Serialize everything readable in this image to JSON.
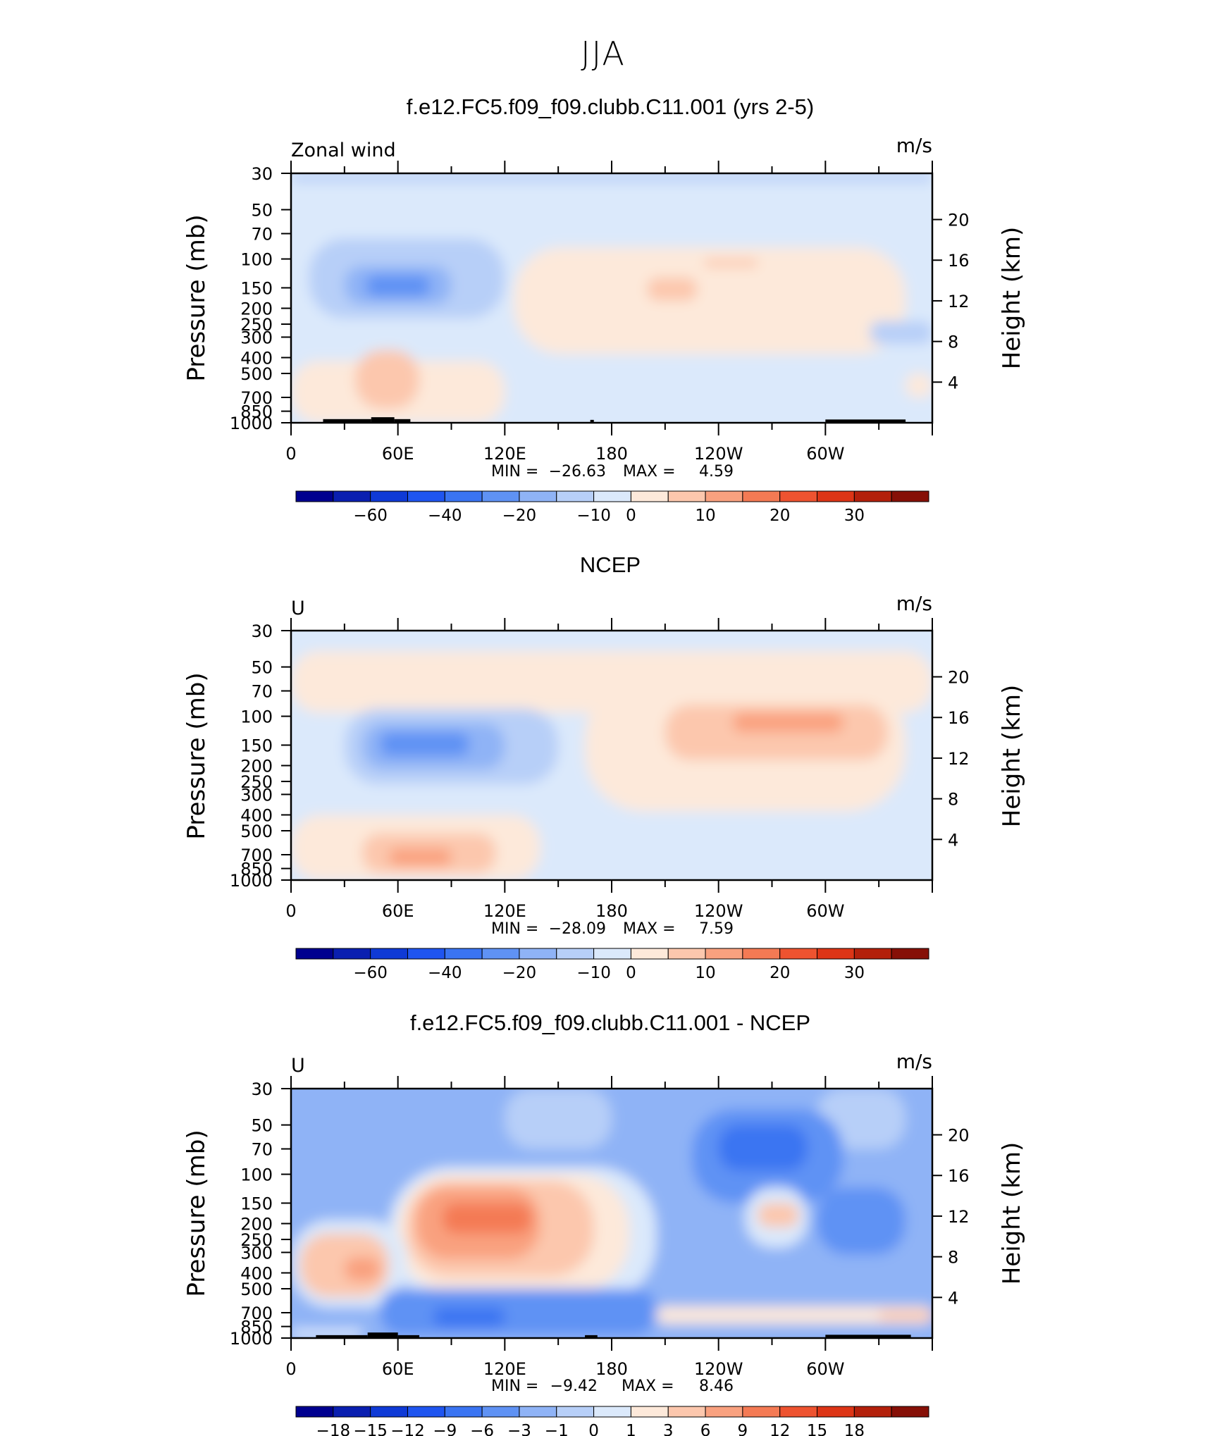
{
  "figure": {
    "title": "JJA"
  },
  "palettes": {
    "abs": [
      "#00008f",
      "#0a1fb0",
      "#0f3ad6",
      "#1f55f0",
      "#3a74f2",
      "#5f92f4",
      "#8fb3f6",
      "#b7cff8",
      "#dbe9fb",
      "#fde9da",
      "#fcc7ad",
      "#f9a17f",
      "#f47a54",
      "#ee5330",
      "#dd3516",
      "#b3200b",
      "#861007"
    ],
    "diff": [
      "#00008f",
      "#0a1fb0",
      "#0f3ad6",
      "#1f55f0",
      "#3a74f2",
      "#5f92f4",
      "#8fb3f6",
      "#b7cff8",
      "#dbe9fb",
      "#fde9da",
      "#fcc7ad",
      "#f9a17f",
      "#f47a54",
      "#ee5330",
      "#dd3516",
      "#b3200b",
      "#861007"
    ]
  },
  "chart_data": [
    {
      "type": "heatmap",
      "title": "f.e12.FC5.f09_f09.clubb.C11.001 (yrs 2-5)",
      "variable_label": "Zonal wind",
      "units": "m/s",
      "ylabel": "Pressure (mb)",
      "ylabel_right": "Height (km)",
      "x_ticks": [
        "0",
        "60E",
        "120E",
        "180",
        "120W",
        "60W"
      ],
      "x_range_deg": [
        0,
        360
      ],
      "y_ticks": [
        "30",
        "50",
        "70",
        "100",
        "150",
        "200",
        "250",
        "300",
        "400",
        "500",
        "700",
        "850",
        "1000"
      ],
      "y_range_mb": [
        30,
        1000
      ],
      "height_ticks": [
        "20",
        "16",
        "12",
        "8",
        "4"
      ],
      "min_label": "MIN =",
      "min": "−26.63",
      "max_label": "MAX =",
      "max": "4.59",
      "colorbar": {
        "palette": "abs",
        "ticks": [
          "−60",
          "−40",
          "−20",
          "−10",
          "0",
          "10",
          "20",
          "30"
        ]
      },
      "regions": [
        {
          "level": 8,
          "lon": [
            0,
            360
          ],
          "p": [
            30,
            1000
          ]
        },
        {
          "level": 7,
          "lon": [
            0,
            360
          ],
          "p": [
            30,
            34
          ]
        },
        {
          "level": 7,
          "lon": [
            10,
            120
          ],
          "p": [
            75,
            230
          ]
        },
        {
          "level": 6,
          "lon": [
            30,
            90
          ],
          "p": [
            110,
            190
          ]
        },
        {
          "level": 5,
          "lon": [
            42,
            78
          ],
          "p": [
            125,
            170
          ]
        },
        {
          "level": 9,
          "lon": [
            125,
            345
          ],
          "p": [
            85,
            380
          ]
        },
        {
          "level": 10,
          "lon": [
            200,
            228
          ],
          "p": [
            130,
            180
          ]
        },
        {
          "level": 10,
          "lon": [
            232,
            262
          ],
          "p": [
            100,
            112
          ]
        },
        {
          "level": 9,
          "lon": [
            0,
            120
          ],
          "p": [
            420,
            1000
          ]
        },
        {
          "level": 10,
          "lon": [
            36,
            72
          ],
          "p": [
            360,
            820
          ]
        },
        {
          "level": 9,
          "lon": [
            345,
            360
          ],
          "p": [
            500,
            700
          ]
        },
        {
          "level": 7,
          "lon": [
            325,
            360
          ],
          "p": [
            240,
            330
          ]
        }
      ]
    },
    {
      "type": "heatmap",
      "title": "NCEP",
      "variable_label": "U",
      "units": "m/s",
      "ylabel": "Pressure (mb)",
      "ylabel_right": "Height (km)",
      "x_ticks": [
        "0",
        "60E",
        "120E",
        "180",
        "120W",
        "60W"
      ],
      "x_range_deg": [
        0,
        360
      ],
      "y_ticks": [
        "30",
        "50",
        "70",
        "100",
        "150",
        "200",
        "250",
        "300",
        "400",
        "500",
        "700",
        "850",
        "1000"
      ],
      "y_range_mb": [
        30,
        1000
      ],
      "height_ticks": [
        "20",
        "16",
        "12",
        "8",
        "4"
      ],
      "min_label": "MIN =",
      "min": "−28.09",
      "max_label": "MAX =",
      "max": "7.59",
      "colorbar": {
        "palette": "abs",
        "ticks": [
          "−60",
          "−40",
          "−20",
          "−10",
          "0",
          "10",
          "20",
          "30"
        ]
      },
      "regions": [
        {
          "level": 8,
          "lon": [
            0,
            360
          ],
          "p": [
            30,
            1000
          ]
        },
        {
          "level": 9,
          "lon": [
            0,
            360
          ],
          "p": [
            40,
            95
          ]
        },
        {
          "level": 9,
          "lon": [
            165,
            345
          ],
          "p": [
            60,
            380
          ]
        },
        {
          "level": 10,
          "lon": [
            210,
            335
          ],
          "p": [
            85,
            185
          ]
        },
        {
          "level": 11,
          "lon": [
            248,
            310
          ],
          "p": [
            95,
            125
          ]
        },
        {
          "level": 7,
          "lon": [
            30,
            150
          ],
          "p": [
            90,
            260
          ]
        },
        {
          "level": 6,
          "lon": [
            40,
            120
          ],
          "p": [
            110,
            210
          ]
        },
        {
          "level": 5,
          "lon": [
            50,
            100
          ],
          "p": [
            125,
            175
          ]
        },
        {
          "level": 9,
          "lon": [
            0,
            140
          ],
          "p": [
            400,
            1000
          ]
        },
        {
          "level": 10,
          "lon": [
            40,
            115
          ],
          "p": [
            520,
            900
          ]
        },
        {
          "level": 11,
          "lon": [
            55,
            90
          ],
          "p": [
            640,
            820
          ]
        }
      ]
    },
    {
      "type": "heatmap",
      "title": "f.e12.FC5.f09_f09.clubb.C11.001 - NCEP",
      "variable_label": "U",
      "units": "m/s",
      "ylabel": "Pressure (mb)",
      "ylabel_right": "Height (km)",
      "x_ticks": [
        "0",
        "60E",
        "120E",
        "180",
        "120W",
        "60W"
      ],
      "x_range_deg": [
        0,
        360
      ],
      "y_ticks": [
        "30",
        "50",
        "70",
        "100",
        "150",
        "200",
        "250",
        "300",
        "400",
        "500",
        "700",
        "850",
        "1000"
      ],
      "y_range_mb": [
        30,
        1000
      ],
      "height_ticks": [
        "20",
        "16",
        "12",
        "8",
        "4"
      ],
      "min_label": "MIN =",
      "min": "−9.42",
      "max_label": "MAX =",
      "max": "8.46",
      "colorbar": {
        "palette": "diff",
        "ticks": [
          "−18",
          "−15",
          "−12",
          "−9",
          "−6",
          "−3",
          "−1",
          "0",
          "1",
          "3",
          "6",
          "9",
          "12",
          "15",
          "18"
        ]
      },
      "regions": [
        {
          "level": 6,
          "lon": [
            0,
            360
          ],
          "p": [
            30,
            1000
          ]
        },
        {
          "level": 7,
          "lon": [
            120,
            180
          ],
          "p": [
            30,
            70
          ]
        },
        {
          "level": 7,
          "lon": [
            295,
            345
          ],
          "p": [
            30,
            70
          ]
        },
        {
          "level": 8,
          "lon": [
            55,
            205
          ],
          "p": [
            90,
            620
          ]
        },
        {
          "level": 9,
          "lon": [
            60,
            190
          ],
          "p": [
            100,
            520
          ]
        },
        {
          "level": 10,
          "lon": [
            65,
            170
          ],
          "p": [
            110,
            420
          ]
        },
        {
          "level": 11,
          "lon": [
            70,
            140
          ],
          "p": [
            120,
            330
          ]
        },
        {
          "level": 12,
          "lon": [
            85,
            135
          ],
          "p": [
            150,
            230
          ]
        },
        {
          "level": 5,
          "lon": [
            225,
            310
          ],
          "p": [
            40,
            150
          ]
        },
        {
          "level": 4,
          "lon": [
            240,
            290
          ],
          "p": [
            50,
            95
          ]
        },
        {
          "level": 5,
          "lon": [
            295,
            345
          ],
          "p": [
            120,
            310
          ]
        },
        {
          "level": 8,
          "lon": [
            255,
            290
          ],
          "p": [
            120,
            280
          ]
        },
        {
          "level": 10,
          "lon": [
            262,
            285
          ],
          "p": [
            150,
            210
          ]
        },
        {
          "level": 8,
          "lon": [
            0,
            65
          ],
          "p": [
            190,
            650
          ]
        },
        {
          "level": 10,
          "lon": [
            5,
            55
          ],
          "p": [
            230,
            560
          ]
        },
        {
          "level": 11,
          "lon": [
            30,
            50
          ],
          "p": [
            320,
            450
          ]
        },
        {
          "level": 5,
          "lon": [
            50,
            205
          ],
          "p": [
            500,
            950
          ]
        },
        {
          "level": 4,
          "lon": [
            80,
            120
          ],
          "p": [
            650,
            850
          ]
        },
        {
          "level": 9,
          "lon": [
            205,
            360
          ],
          "p": [
            640,
            820
          ]
        },
        {
          "level": 10,
          "lon": [
            330,
            360
          ],
          "p": [
            680,
            780
          ]
        },
        {
          "level": 8,
          "lon": [
            0,
            40
          ],
          "p": [
            880,
            1000
          ]
        }
      ]
    }
  ]
}
